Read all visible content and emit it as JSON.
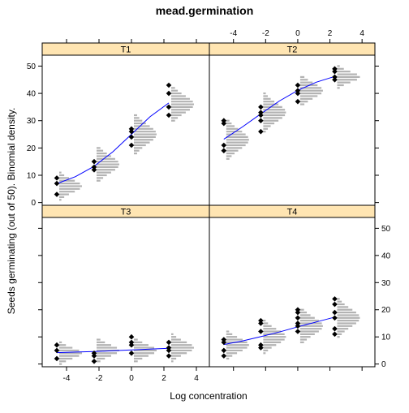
{
  "chart_data": {
    "type": "scatter",
    "title": "mead.germination",
    "xlabel": "Log concentration",
    "ylabel": "Seeds germinating (out of 50).  Binomial density.",
    "xlim": [
      -5.5,
      4.8
    ],
    "ylim": [
      -1,
      54
    ],
    "x_ticks": [
      -4,
      -2,
      0,
      2,
      4
    ],
    "y_ticks": [
      0,
      10,
      20,
      30,
      40,
      50
    ],
    "x_tick_labels": [
      "-4",
      "-2",
      "0",
      "2",
      "4"
    ],
    "y_tick_labels": [
      "0",
      "10",
      "20",
      "30",
      "40",
      "50"
    ],
    "layout": "2x2 panels",
    "colors": {
      "strip": "#ffe5b2",
      "points": "#000000",
      "fit_line": "#0000ff",
      "density": "#b3b3b3"
    },
    "panels": [
      {
        "name": "T1",
        "points": [
          {
            "x": -4.6,
            "y": [
              3,
              7,
              9
            ]
          },
          {
            "x": -2.3,
            "y": [
              12,
              13,
              15
            ]
          },
          {
            "x": 0.0,
            "y": [
              21,
              24,
              26,
              27
            ]
          },
          {
            "x": 2.3,
            "y": [
              32,
              35,
              40,
              43
            ]
          }
        ],
        "fit": {
          "x": [
            -4.6,
            -3.45,
            -2.3,
            -1.15,
            0.0,
            1.15,
            2.3
          ],
          "y": [
            6.9,
            9.5,
            13.3,
            18.6,
            25,
            31.5,
            36.5
          ]
        },
        "density_center": [
          6,
          14,
          25,
          36
        ]
      },
      {
        "name": "T2",
        "points": [
          {
            "x": -4.6,
            "y": [
              19,
              21,
              29,
              30
            ]
          },
          {
            "x": -2.3,
            "y": [
              26,
              30,
              32,
              33,
              35
            ]
          },
          {
            "x": 0.0,
            "y": [
              37,
              40,
              41,
              43
            ]
          },
          {
            "x": 2.3,
            "y": [
              45,
              46,
              48,
              49
            ]
          }
        ],
        "fit": {
          "x": [
            -4.6,
            -3.45,
            -2.3,
            -1.15,
            0.0,
            1.15,
            2.3
          ],
          "y": [
            23.2,
            27.7,
            32.5,
            37.2,
            41.1,
            44.1,
            46.2
          ]
        },
        "density_center": [
          23,
          33,
          41,
          46
        ]
      },
      {
        "name": "T3",
        "points": [
          {
            "x": -4.6,
            "y": [
              2,
              5,
              7
            ]
          },
          {
            "x": -2.3,
            "y": [
              1,
              3,
              4
            ]
          },
          {
            "x": 0.0,
            "y": [
              4,
              7,
              8,
              10
            ]
          },
          {
            "x": 2.3,
            "y": [
              3,
              5,
              6,
              8
            ]
          }
        ],
        "fit": {
          "x": [
            -4.6,
            -3.45,
            -2.3,
            -1.15,
            0.0,
            1.15,
            2.3
          ],
          "y": [
            4.2,
            4.4,
            4.6,
            4.9,
            5.2,
            5.5,
            5.8
          ]
        },
        "density_center": [
          4,
          5,
          5,
          6
        ]
      },
      {
        "name": "T4",
        "points": [
          {
            "x": -4.6,
            "y": [
              3,
              5,
              8,
              9
            ]
          },
          {
            "x": -2.3,
            "y": [
              6,
              7,
              12,
              15,
              16
            ]
          },
          {
            "x": 0.0,
            "y": [
              12,
              14,
              15,
              17,
              19,
              20
            ]
          },
          {
            "x": 2.3,
            "y": [
              11,
              13,
              17,
              19,
              22,
              24
            ]
          }
        ],
        "fit": {
          "x": [
            -4.6,
            -3.45,
            -2.3,
            -1.15,
            0.0,
            1.15,
            2.3
          ],
          "y": [
            7.2,
            8.5,
            10.1,
            11.8,
            13.7,
            15.5,
            17.3
          ]
        },
        "density_center": [
          7,
          10,
          14,
          17
        ]
      }
    ]
  }
}
